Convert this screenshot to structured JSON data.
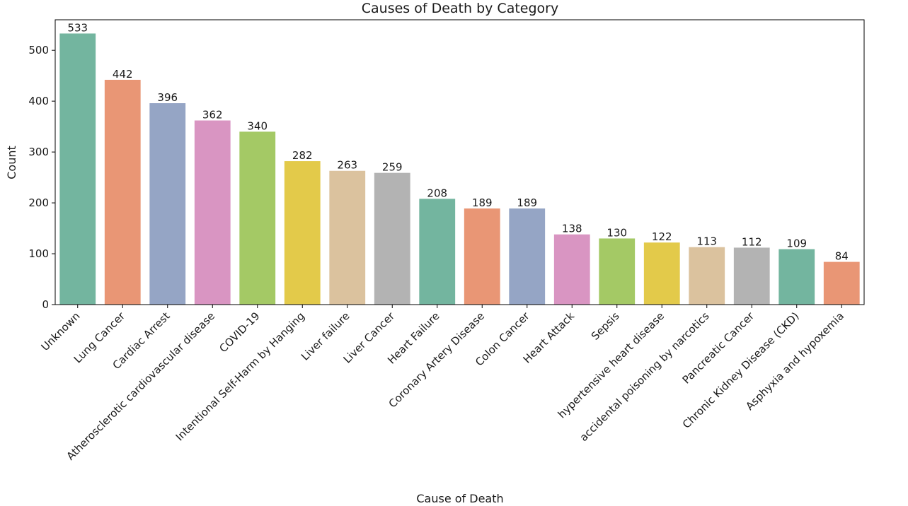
{
  "chart_data": {
    "type": "bar",
    "title": "Causes of Death by Category",
    "xlabel": "Cause of Death",
    "ylabel": "Count",
    "ylim": [
      0,
      560
    ],
    "yticks": [
      0,
      100,
      200,
      300,
      400,
      500
    ],
    "grid": false,
    "legend": "none",
    "categories": [
      "Unknown",
      "Lung Cancer",
      "Cardiac Arrest",
      "Atherosclerotic cardiovascular disease",
      "COVID-19",
      "Intentional Self-Harm by Hanging",
      "Liver failure",
      "Liver Cancer",
      "Heart Failure",
      "Coronary Artery Disease",
      "Colon Cancer",
      "Heart Attack",
      "Sepsis",
      "hypertensive heart disease",
      "accidental poisoning by narcotics",
      "Pancreatic Cancer",
      "Chronic Kidney Disease (CKD)",
      "Asphyxia and hypoxemia"
    ],
    "values": [
      533,
      442,
      396,
      362,
      340,
      282,
      263,
      259,
      208,
      189,
      189,
      138,
      130,
      122,
      113,
      112,
      109,
      84
    ],
    "colors": [
      "#73b59f",
      "#e99675",
      "#95a5c5",
      "#d995c2",
      "#a4c965",
      "#e3ca4a",
      "#dbc29e",
      "#b3b3b3"
    ]
  }
}
